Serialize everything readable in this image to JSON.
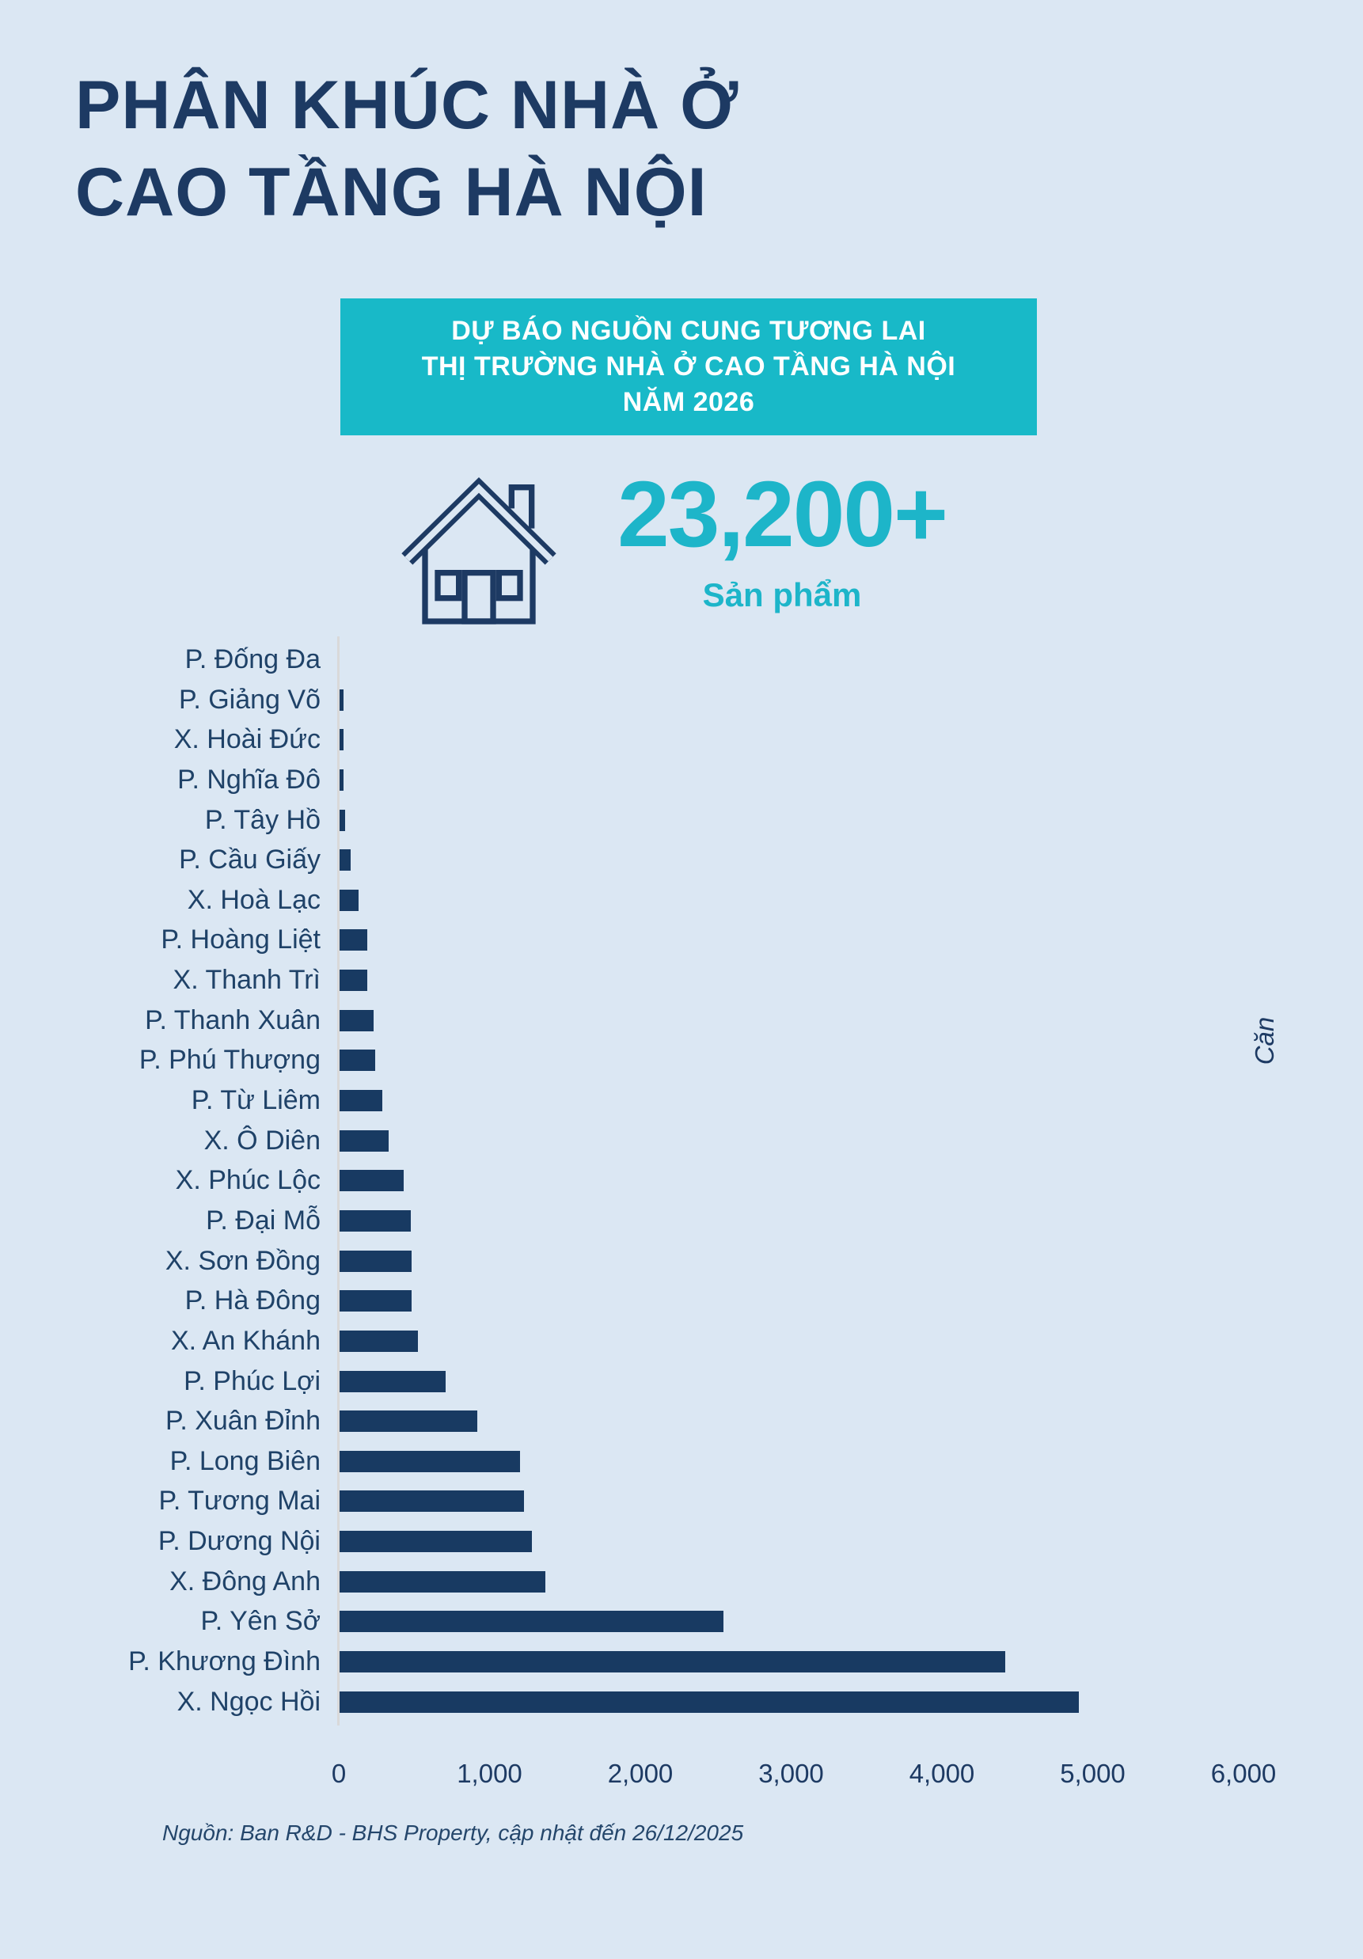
{
  "page": {
    "title_line1": "PHÂN KHÚC NHÀ Ở",
    "title_line2": "CAO TẦNG HÀ NỘI",
    "banner": {
      "line1": "DỰ BÁO NGUỒN CUNG TƯƠNG LAI",
      "line2": "THỊ TRƯỜNG NHÀ Ở CAO TẦNG HÀ NỘI",
      "line3": "NĂM 2026"
    },
    "highlight": {
      "value": "23,200+",
      "label": "Sản phẩm"
    },
    "source_note": "Nguồn: Ban R&D - BHS Property, cập nhật đến 26/12/2025"
  },
  "colors": {
    "background": "#dbe7f3",
    "navy": "#1d3a63",
    "bar": "#183a62",
    "teal_banner": "#18b9c8",
    "teal_number": "#1db5c9",
    "axis_line": "#d9d9d9"
  },
  "chart_data": {
    "type": "bar",
    "orientation": "horizontal",
    "title": "DỰ BÁO NGUỒN CUNG TƯƠNG LAI THỊ TRƯỜNG NHÀ Ở CAO TẦNG HÀ NỘI NĂM 2026",
    "unit_label": "Căn",
    "categories": [
      "P. Đống Đa",
      "P. Giảng Võ",
      "X. Hoài Đức",
      "P. Nghĩa Đô",
      "P. Tây Hồ",
      "P. Cầu Giấy",
      "X. Hoà Lạc",
      "P. Hoàng Liệt",
      "X. Thanh Trì",
      "P. Thanh Xuân",
      "P. Phú Thượng",
      "P. Từ Liêm",
      "X. Ô Diên",
      "X. Phúc Lộc",
      "P. Đại Mỗ",
      "X. Sơn Đồng",
      "P. Hà Đông",
      "X. An Khánh",
      "P. Phúc Lợi",
      "P. Xuân Đỉnh",
      "P. Long Biên",
      "P. Tương Mai",
      "P. Dương Nội",
      "X. Đông Anh",
      "P. Yên Sở",
      "P. Khương Đình",
      "X. Ngọc Hồi"
    ],
    "values": [
      0,
      30,
      30,
      30,
      40,
      80,
      130,
      190,
      190,
      230,
      240,
      290,
      330,
      430,
      480,
      485,
      485,
      525,
      710,
      920,
      1200,
      1230,
      1280,
      1370,
      2550,
      4420,
      4910
    ],
    "x_ticks": [
      0,
      1000,
      2000,
      3000,
      4000,
      5000,
      6000
    ],
    "xlim": [
      0,
      6000
    ],
    "grid": false,
    "legend": "none"
  }
}
